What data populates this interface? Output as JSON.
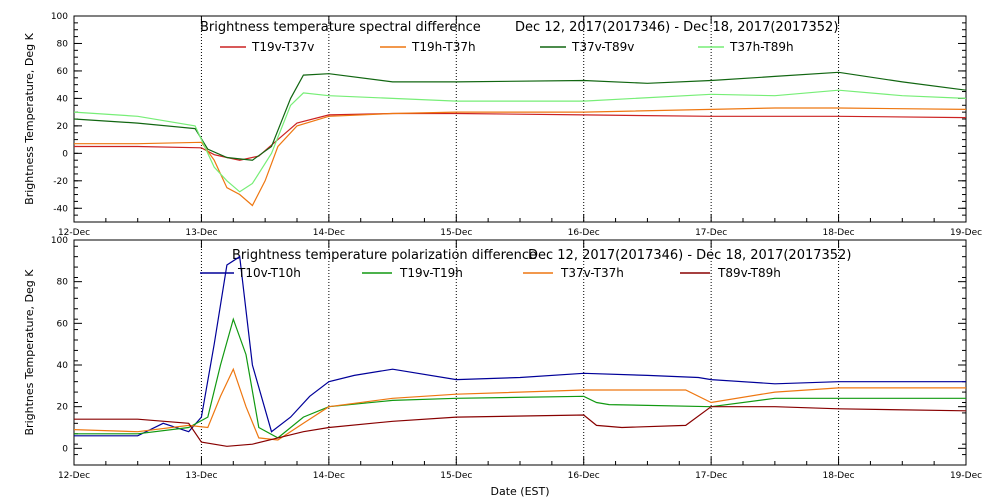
{
  "chart_data": [
    {
      "type": "line",
      "title": "Brightness temperature spectral difference",
      "date_range": "Dec 12, 2017(2017346) - Dec 18, 2017(2017352)",
      "xlabel": "",
      "ylabel": "Brightness Temperature, Deg K",
      "xlim": [
        "12-Dec",
        "19-Dec"
      ],
      "ylim": [
        -50,
        100
      ],
      "yticks": [
        -40,
        -20,
        0,
        20,
        40,
        60,
        80,
        100
      ],
      "x_tick_labels": [
        "12-Dec",
        "13-Dec",
        "14-Dec",
        "15-Dec",
        "16-Dec",
        "17-Dec",
        "18-Dec",
        "19-Dec"
      ],
      "grid": "vertical dotted at day boundaries",
      "legend": "top",
      "x_units": "days since 12-Dec 00:00",
      "series": [
        {
          "name": "T19v-T37v",
          "color": "#cc2222",
          "x": [
            0.0,
            0.5,
            1.0,
            1.1,
            1.2,
            1.3,
            1.45,
            1.6,
            1.75,
            2.0,
            2.5,
            3.0,
            4.0,
            5.0,
            6.0,
            7.0
          ],
          "y": [
            5,
            5,
            4,
            -1,
            -3,
            -5,
            -2,
            10,
            22,
            28,
            29,
            29,
            28,
            27,
            27,
            26
          ]
        },
        {
          "name": "T19h-T37h",
          "color": "#ee7711",
          "x": [
            0.0,
            0.5,
            1.0,
            1.1,
            1.2,
            1.3,
            1.4,
            1.5,
            1.6,
            1.75,
            2.0,
            2.5,
            3.0,
            4.0,
            5.0,
            5.5,
            6.0,
            7.0
          ],
          "y": [
            7,
            7,
            8,
            -5,
            -25,
            -30,
            -38,
            -20,
            5,
            20,
            27,
            29,
            30,
            30,
            32,
            33,
            33,
            32
          ]
        },
        {
          "name": "T37v-T89v",
          "color": "#116611",
          "x": [
            0.0,
            0.5,
            0.95,
            1.05,
            1.2,
            1.4,
            1.55,
            1.7,
            1.8,
            2.0,
            2.5,
            3.0,
            4.0,
            4.5,
            5.0,
            5.5,
            6.0,
            6.5,
            7.0
          ],
          "y": [
            25,
            22,
            18,
            3,
            -3,
            -5,
            5,
            40,
            57,
            58,
            52,
            52,
            53,
            51,
            53,
            56,
            59,
            52,
            46
          ]
        },
        {
          "name": "T37h-T89h",
          "color": "#77ee77",
          "x": [
            0.0,
            0.5,
            0.95,
            1.1,
            1.2,
            1.3,
            1.4,
            1.55,
            1.7,
            1.8,
            2.0,
            2.5,
            3.0,
            4.0,
            5.0,
            5.5,
            6.0,
            6.5,
            7.0
          ],
          "y": [
            30,
            27,
            20,
            -10,
            -20,
            -28,
            -22,
            0,
            35,
            44,
            42,
            40,
            38,
            38,
            43,
            42,
            46,
            42,
            40
          ]
        }
      ]
    },
    {
      "type": "line",
      "title": "Brightness temperature polarization difference",
      "date_range": "Dec 12, 2017(2017346) - Dec 18, 2017(2017352)",
      "xlabel": "Date (EST)",
      "ylabel": "Brightnes Temperature, Deg K",
      "xlim": [
        "12-Dec",
        "19-Dec"
      ],
      "ylim": [
        -8,
        100
      ],
      "yticks": [
        0,
        20,
        40,
        60,
        80,
        100
      ],
      "x_tick_labels": [
        "12-Dec",
        "13-Dec",
        "14-Dec",
        "15-Dec",
        "16-Dec",
        "17-Dec",
        "18-Dec",
        "19-Dec"
      ],
      "grid": "vertical dotted at day boundaries",
      "legend": "top",
      "x_units": "days since 12-Dec 00:00",
      "series": [
        {
          "name": "T10v-T10h",
          "color": "#000099",
          "x": [
            0.0,
            0.5,
            0.7,
            0.9,
            1.0,
            1.1,
            1.2,
            1.3,
            1.4,
            1.55,
            1.7,
            1.85,
            2.0,
            2.2,
            2.5,
            3.0,
            3.5,
            4.0,
            4.5,
            4.9,
            5.0,
            5.5,
            6.0,
            6.5,
            7.0
          ],
          "y": [
            6,
            6,
            12,
            8,
            15,
            50,
            88,
            92,
            40,
            8,
            15,
            25,
            32,
            35,
            38,
            33,
            34,
            36,
            35,
            34,
            33,
            31,
            32,
            32,
            32
          ]
        },
        {
          "name": "T19v-T19h",
          "color": "#119911",
          "x": [
            0.0,
            0.5,
            0.9,
            1.05,
            1.15,
            1.25,
            1.35,
            1.45,
            1.6,
            1.8,
            2.0,
            2.5,
            3.0,
            4.0,
            4.1,
            4.2,
            5.0,
            5.5,
            6.0,
            7.0
          ],
          "y": [
            7,
            7,
            10,
            15,
            40,
            62,
            45,
            10,
            5,
            15,
            20,
            23,
            24,
            25,
            22,
            21,
            20,
            24,
            24,
            24
          ]
        },
        {
          "name": "T37v-T37h",
          "color": "#ee7711",
          "x": [
            0.0,
            0.5,
            0.9,
            1.05,
            1.15,
            1.25,
            1.35,
            1.45,
            1.6,
            1.8,
            2.0,
            2.5,
            3.0,
            4.0,
            4.8,
            5.0,
            5.5,
            6.0,
            7.0
          ],
          "y": [
            9,
            8,
            11,
            10,
            25,
            38,
            20,
            5,
            4,
            12,
            20,
            24,
            26,
            28,
            28,
            22,
            27,
            29,
            29
          ]
        },
        {
          "name": "T89v-T89h",
          "color": "#880000",
          "x": [
            0.0,
            0.5,
            0.9,
            1.0,
            1.2,
            1.4,
            1.6,
            1.8,
            2.0,
            2.5,
            3.0,
            4.0,
            4.1,
            4.3,
            4.8,
            5.0,
            5.5,
            6.0,
            7.0
          ],
          "y": [
            14,
            14,
            12,
            3,
            1,
            2,
            5,
            8,
            10,
            13,
            15,
            16,
            11,
            10,
            11,
            20,
            20,
            19,
            18
          ]
        }
      ]
    }
  ]
}
